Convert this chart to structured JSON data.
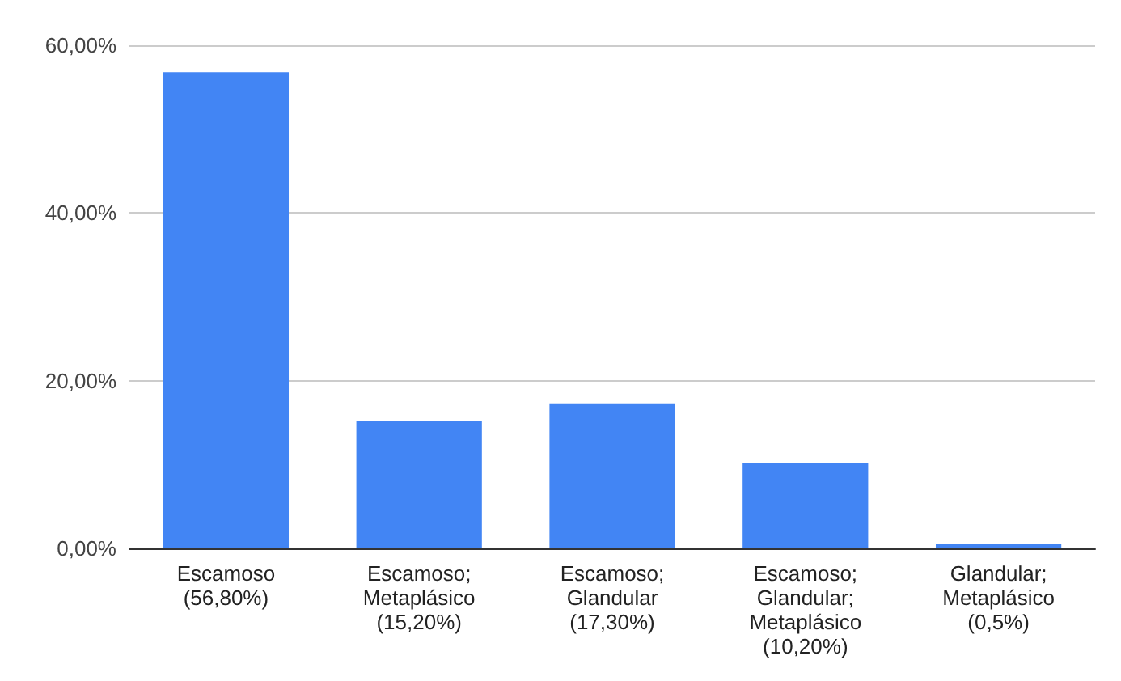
{
  "chart_data": {
    "type": "bar",
    "categories": [
      "Escamoso\n(56,80%)",
      "Escamoso;\nMetaplásico\n(15,20%)",
      "Escamoso;\nGlandular\n(17,30%)",
      "Escamoso;\nGlandular;\nMetaplásico\n(10,20%)",
      "Glandular;\nMetaplásico\n(0,5%)"
    ],
    "values": [
      56.8,
      15.2,
      17.3,
      10.2,
      0.5
    ],
    "color": "#4285f4",
    "ylim": [
      0,
      60
    ],
    "yticks": [
      {
        "value": 0,
        "label": "0,00%"
      },
      {
        "value": 20,
        "label": "20,00%"
      },
      {
        "value": 40,
        "label": "40,00%"
      },
      {
        "value": 60,
        "label": "60,00%"
      }
    ],
    "grid": "y"
  }
}
